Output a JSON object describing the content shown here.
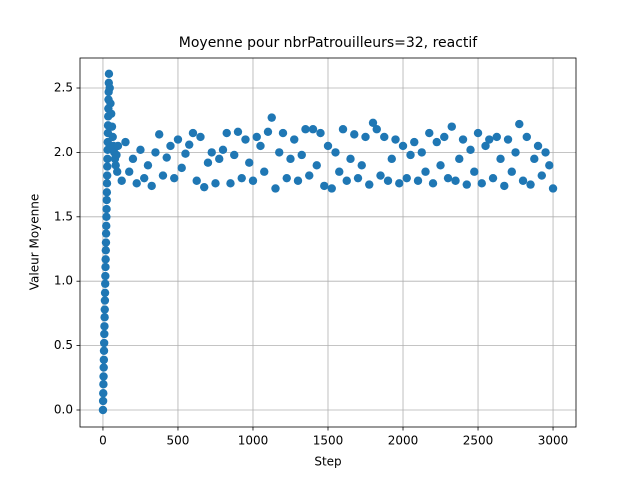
{
  "chart_data": {
    "type": "scatter",
    "title": "Moyenne pour nbrPatrouilleurs=32, reactif",
    "x_label": "Step",
    "y_label": "Valeur Moyenne",
    "color": "#1f77b4",
    "grid": true,
    "xlim": [
      -153,
      3153
    ],
    "ylim": [
      -0.132,
      2.733
    ],
    "xticks": [
      0,
      500,
      1000,
      1500,
      2000,
      2500,
      3000
    ],
    "yticks": [
      {
        "value": 0,
        "label": "0.0"
      },
      {
        "value": 0.5,
        "label": "0.5"
      },
      {
        "value": 1,
        "label": "1.0"
      },
      {
        "value": 1.5,
        "label": "1.5"
      },
      {
        "value": 2,
        "label": "2.0"
      },
      {
        "value": 2.5,
        "label": "2.5"
      }
    ],
    "x": [
      0,
      1,
      2,
      3,
      4,
      5,
      6,
      7,
      8,
      9,
      10,
      11,
      12,
      13,
      14,
      15,
      16,
      17,
      18,
      19,
      20,
      21,
      22,
      23,
      24,
      25,
      26,
      27,
      28,
      29,
      30,
      31,
      32,
      33,
      34,
      35,
      36,
      37,
      38,
      39,
      40,
      45,
      50,
      55,
      60,
      65,
      70,
      75,
      80,
      85,
      90,
      95,
      100,
      125,
      150,
      175,
      200,
      225,
      250,
      275,
      300,
      325,
      350,
      375,
      400,
      425,
      450,
      475,
      500,
      525,
      550,
      575,
      600,
      625,
      650,
      675,
      700,
      725,
      750,
      775,
      800,
      825,
      850,
      875,
      900,
      925,
      950,
      975,
      1000,
      1025,
      1050,
      1075,
      1100,
      1125,
      1150,
      1175,
      1200,
      1225,
      1250,
      1275,
      1300,
      1325,
      1350,
      1375,
      1400,
      1425,
      1450,
      1475,
      1500,
      1525,
      1550,
      1575,
      1600,
      1625,
      1650,
      1675,
      1700,
      1725,
      1750,
      1775,
      1800,
      1825,
      1850,
      1875,
      1900,
      1925,
      1950,
      1975,
      2000,
      2025,
      2050,
      2075,
      2100,
      2125,
      2150,
      2175,
      2200,
      2225,
      2250,
      2275,
      2300,
      2325,
      2350,
      2375,
      2400,
      2425,
      2450,
      2475,
      2500,
      2525,
      2550,
      2575,
      2600,
      2625,
      2650,
      2675,
      2700,
      2725,
      2750,
      2775,
      2800,
      2825,
      2850,
      2875,
      2900,
      2925,
      2950,
      2975,
      3000
    ],
    "values": [
      0,
      0.07,
      0.13,
      0.2,
      0.26,
      0.33,
      0.39,
      0.46,
      0.52,
      0.59,
      0.65,
      0.72,
      0.78,
      0.85,
      0.91,
      0.98,
      1.04,
      1.11,
      1.17,
      1.24,
      1.3,
      1.37,
      1.43,
      1.5,
      1.56,
      1.63,
      1.69,
      1.76,
      1.82,
      1.89,
      1.95,
      2.02,
      2.08,
      2.15,
      2.21,
      2.28,
      2.34,
      2.41,
      2.47,
      2.54,
      2.61,
      2.5,
      2.38,
      2.3,
      2.2,
      2.12,
      2.05,
      2,
      1.95,
      1.9,
      1.98,
      1.85,
      2.05,
      1.78,
      2.08,
      1.85,
      1.95,
      1.76,
      2.02,
      1.8,
      1.9,
      1.74,
      2,
      2.14,
      1.82,
      1.96,
      2.05,
      1.8,
      2.1,
      1.88,
      1.99,
      2.06,
      2.15,
      1.78,
      2.12,
      1.73,
      1.92,
      2,
      1.76,
      1.95,
      2.02,
      2.15,
      1.76,
      1.98,
      2.16,
      1.8,
      2.1,
      1.92,
      1.78,
      2.12,
      2.05,
      1.85,
      2.16,
      2.27,
      1.72,
      2,
      2.15,
      1.8,
      1.95,
      2.1,
      1.78,
      1.98,
      2.18,
      1.82,
      2.18,
      1.9,
      2.15,
      1.74,
      2.05,
      1.72,
      2,
      1.85,
      2.18,
      1.78,
      1.95,
      2.14,
      1.8,
      1.9,
      2.12,
      1.75,
      2.23,
      2.18,
      1.82,
      2.12,
      1.78,
      1.95,
      2.1,
      1.76,
      2.05,
      1.8,
      1.98,
      2.08,
      1.78,
      2,
      1.85,
      2.15,
      1.76,
      2.08,
      1.9,
      2.12,
      1.8,
      2.2,
      1.78,
      1.95,
      2.1,
      1.75,
      2.02,
      1.85,
      2.15,
      1.76,
      2.05,
      2.1,
      1.8,
      2.12,
      1.95,
      1.74,
      2.1,
      1.85,
      2,
      2.22,
      1.78,
      2.12,
      1.75,
      1.95,
      2.05,
      1.82,
      2,
      1.9,
      1.72
    ]
  }
}
